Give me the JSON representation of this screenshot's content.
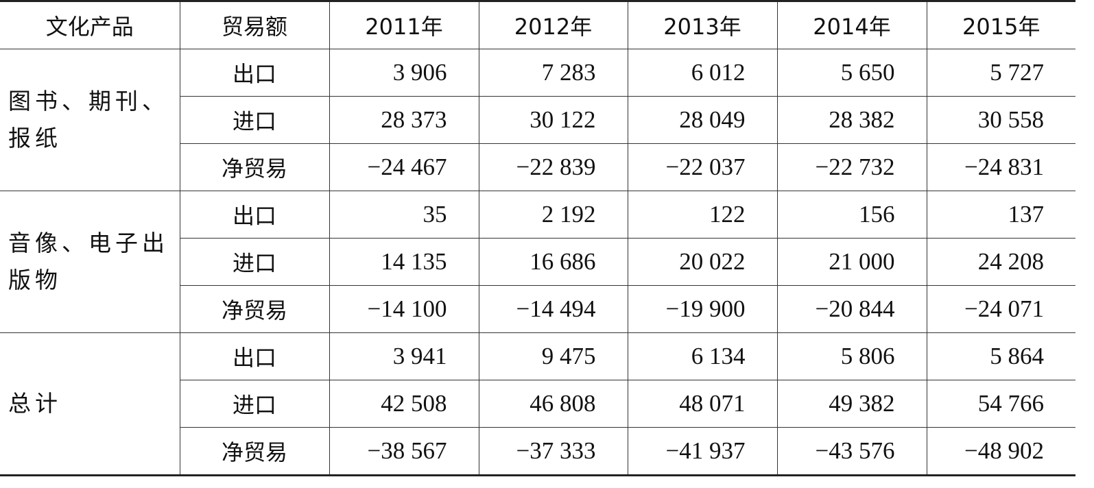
{
  "table": {
    "header": [
      "文化产品",
      "贸易额",
      "2011年",
      "2012年",
      "2013年",
      "2014年",
      "2015年"
    ],
    "groups": [
      {
        "label": "图书、期刊、报纸",
        "rows": [
          [
            "出口",
            "3 906",
            "7 283",
            "6 012",
            "5 650",
            "5 727"
          ],
          [
            "进口",
            "28 373",
            "30 122",
            "28 049",
            "28 382",
            "30 558"
          ],
          [
            "净贸易",
            "−24 467",
            "−22 839",
            "−22 037",
            "−22 732",
            "−24 831"
          ]
        ]
      },
      {
        "label": "音像、电子出版物",
        "rows": [
          [
            "出口",
            "35",
            "2 192",
            "122",
            "156",
            "137"
          ],
          [
            "进口",
            "14 135",
            "16 686",
            "20 022",
            "21 000",
            "24 208"
          ],
          [
            "净贸易",
            "−14 100",
            "−14 494",
            "−19 900",
            "−20 844",
            "−24 071"
          ]
        ]
      },
      {
        "label": "总计",
        "rows": [
          [
            "出口",
            "3 941",
            "9 475",
            "6 134",
            "5 806",
            "5 864"
          ],
          [
            "进口",
            "42 508",
            "46 808",
            "48 071",
            "49 382",
            "54 766"
          ],
          [
            "净贸易",
            "−38 567",
            "−37 333",
            "−41 937",
            "−43 576",
            "−48 902"
          ]
        ]
      }
    ]
  }
}
